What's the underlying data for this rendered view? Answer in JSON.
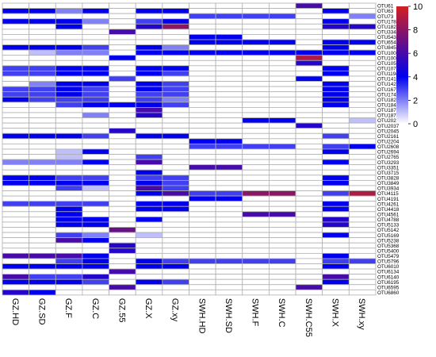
{
  "chart_data": {
    "type": "heatmap",
    "columns": [
      "GZ.HD",
      "GZ.SD",
      "GZ.F",
      "GZ.C",
      "GZ.55",
      "GZ.X",
      "GZ.xy",
      "SWH.HD",
      "SWH.SD",
      "SWH.F",
      "SWH.C",
      "SWH.C55",
      "SWH.X",
      "SWH.xy"
    ],
    "rows": [
      "OTU61",
      "OTU63",
      "OTU73",
      "OTU178",
      "OTU182",
      "OTU334",
      "OTU543",
      "OTU654",
      "OTU845",
      "OTU1002",
      "OTU1004",
      "OTU1055",
      "OTU1071",
      "OTU1194",
      "OTU1417",
      "OTU1425",
      "OTU1677",
      "OTU1748",
      "OTU1823",
      "OTU1841",
      "OTU1877",
      "OTU1878",
      "OTU2028",
      "OTU2037",
      "OTU2045",
      "OTU2161",
      "OTU2204",
      "OTU2608",
      "OTU2694",
      "OTU2765",
      "OTU3293",
      "OTU3351",
      "OTU3715",
      "OTU3828",
      "OTU3849",
      "OTU3934",
      "OTU4115",
      "OTU4191",
      "OTU4261",
      "OTU4418",
      "OTU4561",
      "OTU4788",
      "OTU5133",
      "OTU5142",
      "OTU5169",
      "OTU5238",
      "OTU5368",
      "OTU5400",
      "OTU5479",
      "OTU5796",
      "OTU6010",
      "OTU6134",
      "OTU6140",
      "OTU6195",
      "OTU6595",
      "OTU6860"
    ],
    "values": [
      [
        0,
        0,
        0,
        0,
        0,
        0,
        0,
        0,
        0,
        0,
        0,
        6,
        0,
        0
      ],
      [
        4,
        4,
        2,
        4,
        0,
        4,
        4,
        0,
        0,
        0,
        0,
        0,
        4,
        0
      ],
      [
        0,
        0,
        0,
        0,
        0,
        0,
        0,
        3,
        3,
        3,
        3,
        0,
        0,
        2
      ],
      [
        4,
        4,
        4,
        2,
        0,
        3,
        4,
        0,
        0,
        0,
        0,
        0,
        4,
        0
      ],
      [
        0,
        0,
        4,
        0,
        0,
        5,
        8,
        0,
        0,
        0,
        0,
        0,
        5,
        5
      ],
      [
        0,
        0,
        0,
        0,
        6,
        0,
        0,
        0,
        0,
        0,
        0,
        0,
        0,
        0
      ],
      [
        0,
        0,
        0,
        0,
        0,
        0,
        0,
        4,
        4,
        0,
        0,
        0,
        0,
        0
      ],
      [
        0,
        0,
        0,
        0,
        0,
        0,
        0,
        4,
        4,
        4,
        4,
        0,
        4,
        4
      ],
      [
        4,
        4,
        4,
        3,
        0,
        4,
        2,
        0,
        0,
        0,
        0,
        0,
        4,
        0
      ],
      [
        0,
        1,
        2,
        2,
        0,
        4,
        4,
        4,
        4,
        4,
        4,
        4,
        4,
        4
      ],
      [
        0,
        0,
        0,
        0,
        4,
        0,
        0,
        0,
        0,
        0,
        0,
        9,
        0,
        0
      ],
      [
        0,
        0,
        0,
        0,
        0,
        0,
        0,
        0,
        0,
        0,
        0,
        5,
        0,
        0
      ],
      [
        3,
        3,
        4,
        4,
        0,
        4,
        4,
        0,
        0,
        0,
        0,
        0,
        4,
        0
      ],
      [
        3,
        3,
        4,
        4,
        0,
        4,
        3,
        0,
        0,
        0,
        0,
        0,
        4,
        0
      ],
      [
        0,
        0,
        0,
        0,
        3,
        0,
        0,
        0,
        0,
        0,
        0,
        4,
        0,
        0
      ],
      [
        0,
        2,
        4,
        4,
        0,
        4,
        3,
        0,
        0,
        0,
        0,
        0,
        4,
        0
      ],
      [
        3,
        3,
        4,
        3,
        0,
        4,
        3,
        0,
        0,
        0,
        0,
        0,
        4,
        0
      ],
      [
        3,
        3,
        4,
        3,
        0,
        3,
        3,
        0,
        0,
        0,
        0,
        0,
        4,
        0
      ],
      [
        4,
        3,
        3,
        3,
        0,
        3,
        2,
        0,
        0,
        0,
        0,
        0,
        4,
        0
      ],
      [
        0,
        0,
        3,
        4,
        4,
        4,
        3,
        0,
        0,
        0,
        0,
        0,
        4,
        0
      ],
      [
        0,
        0,
        0,
        0,
        0,
        6,
        0,
        0,
        0,
        0,
        0,
        0,
        0,
        0
      ],
      [
        0,
        0,
        0,
        2,
        0,
        5,
        0,
        0,
        0,
        0,
        0,
        0,
        0,
        0
      ],
      [
        0,
        0,
        0,
        0,
        0,
        0,
        0,
        0,
        0,
        4,
        4,
        0,
        0,
        1
      ],
      [
        0,
        0,
        0,
        0,
        0,
        0,
        0,
        0,
        0,
        0,
        0,
        5,
        0,
        0
      ],
      [
        0,
        0,
        0,
        0,
        5,
        0,
        0,
        0,
        0,
        0,
        0,
        0,
        0,
        0
      ],
      [
        4,
        4,
        4,
        3,
        0,
        4,
        4,
        0,
        0,
        0,
        0,
        0,
        3,
        0
      ],
      [
        0,
        0,
        0,
        0,
        0,
        0,
        0,
        4,
        4,
        0,
        0,
        0,
        0,
        0
      ],
      [
        0,
        0,
        0,
        0,
        0,
        0,
        0,
        3,
        3,
        3,
        3,
        0,
        3,
        4
      ],
      [
        0,
        0,
        1,
        4,
        0,
        0,
        0,
        0,
        0,
        0,
        0,
        0,
        4,
        0
      ],
      [
        0,
        0,
        1,
        0,
        0,
        3,
        0,
        0,
        0,
        0,
        0,
        0,
        0,
        0
      ],
      [
        2,
        2,
        2,
        4,
        0,
        6,
        0,
        0,
        0,
        0,
        0,
        0,
        4,
        0
      ],
      [
        0,
        0,
        0,
        0,
        0,
        0,
        0,
        6,
        6,
        0,
        0,
        0,
        0,
        0
      ],
      [
        0,
        0,
        0,
        0,
        0,
        4,
        0,
        0,
        0,
        0,
        0,
        0,
        0,
        0
      ],
      [
        4,
        4,
        3,
        3,
        0,
        3,
        3,
        0,
        0,
        0,
        0,
        0,
        4,
        0
      ],
      [
        4,
        4,
        4,
        4,
        0,
        4,
        3,
        0,
        0,
        0,
        0,
        0,
        4,
        0
      ],
      [
        0,
        0,
        3,
        1,
        0,
        6,
        3,
        0,
        0,
        0,
        0,
        0,
        0,
        0
      ],
      [
        0,
        0,
        0,
        0,
        0,
        4,
        6,
        3,
        3,
        8,
        8,
        0,
        3,
        9
      ],
      [
        0,
        0,
        0,
        0,
        0,
        0,
        0,
        4,
        4,
        0,
        0,
        0,
        0,
        0
      ],
      [
        3,
        3,
        3,
        3,
        0,
        4,
        4,
        0,
        0,
        0,
        0,
        0,
        4,
        0
      ],
      [
        0,
        0,
        4,
        0,
        0,
        4,
        4,
        0,
        0,
        0,
        0,
        0,
        4,
        0
      ],
      [
        0,
        0,
        4,
        0,
        0,
        0,
        0,
        0,
        0,
        6,
        6,
        0,
        0,
        0
      ],
      [
        0,
        0,
        4,
        4,
        0,
        4,
        0,
        0,
        0,
        0,
        0,
        0,
        5,
        0
      ],
      [
        0,
        0,
        4,
        4,
        0,
        0,
        0,
        0,
        0,
        0,
        0,
        0,
        5,
        0
      ],
      [
        0,
        0,
        0,
        0,
        7,
        0,
        0,
        0,
        0,
        0,
        0,
        0,
        0,
        0
      ],
      [
        0,
        0,
        3,
        2,
        0,
        1,
        0,
        0,
        0,
        0,
        0,
        0,
        4,
        0
      ],
      [
        0,
        0,
        6,
        4,
        0,
        0,
        0,
        0,
        0,
        0,
        0,
        0,
        0,
        0
      ],
      [
        0,
        0,
        0,
        0,
        5,
        0,
        0,
        0,
        0,
        0,
        0,
        0,
        0,
        0
      ],
      [
        0,
        0,
        0,
        0,
        5,
        0,
        0,
        0,
        0,
        0,
        0,
        0,
        0,
        0
      ],
      [
        6,
        6,
        6,
        4,
        0,
        0,
        0,
        0,
        0,
        0,
        0,
        0,
        4,
        0
      ],
      [
        0,
        0,
        3,
        4,
        0,
        4,
        3,
        3,
        3,
        3,
        3,
        0,
        3,
        3
      ],
      [
        4,
        4,
        4,
        4,
        0,
        4,
        4,
        0,
        0,
        0,
        0,
        0,
        4,
        0
      ],
      [
        0,
        0,
        0,
        0,
        6,
        0,
        0,
        0,
        0,
        0,
        0,
        0,
        0,
        0
      ],
      [
        6,
        3,
        3,
        5,
        0,
        0,
        0,
        0,
        0,
        0,
        0,
        0,
        6,
        0
      ],
      [
        4,
        4,
        4,
        3,
        0,
        4,
        3,
        0,
        0,
        0,
        0,
        0,
        4,
        0
      ],
      [
        0,
        0,
        0,
        0,
        6,
        0,
        0,
        0,
        0,
        0,
        0,
        6,
        0,
        0
      ],
      [
        5,
        4,
        0,
        0,
        0,
        0,
        0,
        0,
        0,
        0,
        0,
        0,
        0,
        0
      ]
    ],
    "legend": {
      "ticks": [
        0,
        2,
        4,
        6,
        8,
        10
      ],
      "min": 0,
      "max": 10,
      "colors": {
        "low": "#ffffff",
        "mid": "#0000ee",
        "high": "#d22020"
      }
    },
    "grid": true,
    "legend_position": "top-right"
  }
}
